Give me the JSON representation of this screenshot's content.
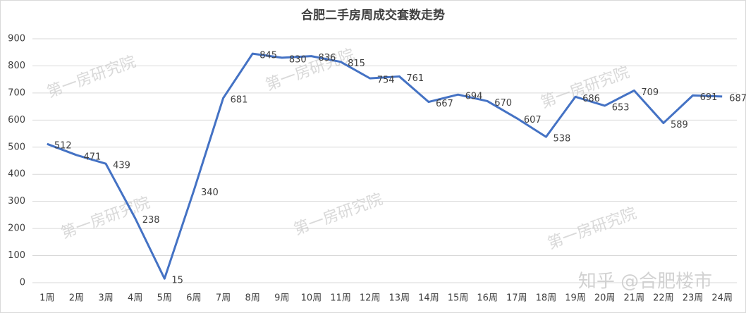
{
  "chart_data": {
    "type": "line",
    "title": "合肥二手房周成交套数走势",
    "categories": [
      "1周",
      "2周",
      "3周",
      "4周",
      "5周",
      "6周",
      "7周",
      "8周",
      "9周",
      "10周",
      "11周",
      "12周",
      "13周",
      "14周",
      "15周",
      "16周",
      "17周",
      "18周",
      "19周",
      "20周",
      "21周",
      "22周",
      "23周",
      "24周"
    ],
    "values": [
      512,
      471,
      439,
      238,
      15,
      340,
      681,
      845,
      830,
      836,
      815,
      754,
      761,
      667,
      694,
      670,
      607,
      538,
      686,
      653,
      709,
      589,
      691,
      687
    ],
    "color": "#4472c4",
    "ylim": [
      0,
      900
    ],
    "yticks": [
      0,
      100,
      200,
      300,
      400,
      500,
      600,
      700,
      800,
      900
    ],
    "grid": true,
    "watermarks": [
      "第一房研究院",
      "知乎 @合肥楼市"
    ]
  }
}
